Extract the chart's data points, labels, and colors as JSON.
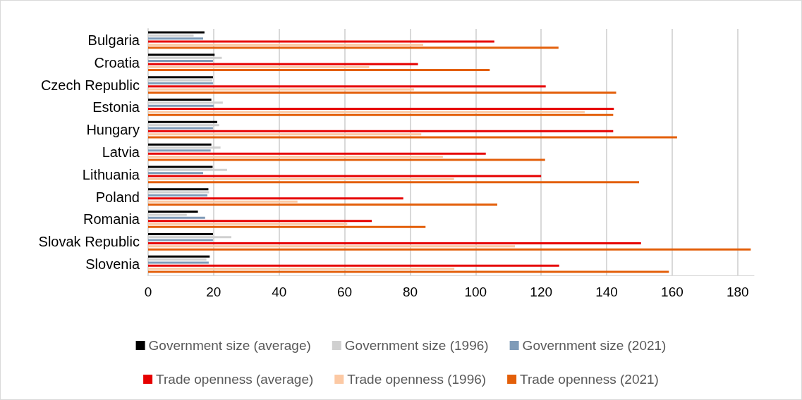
{
  "chart_data": {
    "type": "bar",
    "orientation": "horizontal",
    "categories": [
      "Bulgaria",
      "Croatia",
      "Czech Republic",
      "Estonia",
      "Hungary",
      "Latvia",
      "Lithuania",
      "Poland",
      "Romania",
      "Slovak Republic",
      "Slovenia"
    ],
    "series": [
      {
        "name": "Government size (average)",
        "color": "#000000",
        "values": [
          17.2,
          20.3,
          19.8,
          19.3,
          21.1,
          19.3,
          19.7,
          18.4,
          15.2,
          19.8,
          18.8
        ]
      },
      {
        "name": "Government size (1996)",
        "color": "#d0d0d0",
        "values": [
          13.9,
          22.5,
          19.6,
          22.8,
          21.7,
          22.1,
          24.1,
          18.6,
          11.8,
          25.4,
          17.8
        ]
      },
      {
        "name": "Government size (2021)",
        "color": "#7f9bb8",
        "values": [
          16.8,
          19.8,
          19.8,
          20.0,
          19.8,
          19.1,
          16.8,
          18.1,
          17.4,
          19.8,
          18.5
        ]
      },
      {
        "name": "Trade openness (average)",
        "color": "#e60000",
        "values": [
          105.7,
          82.4,
          121.4,
          142.2,
          142.0,
          103.1,
          120.0,
          77.9,
          68.3,
          150.5,
          125.5
        ]
      },
      {
        "name": "Trade openness (1996)",
        "color": "#fcc9a4",
        "values": [
          84,
          67.5,
          81.2,
          133.3,
          83.4,
          90.0,
          93.4,
          45.6,
          60.8,
          112,
          93.5
        ]
      },
      {
        "name": "Trade openness (2021)",
        "color": "#e35f0a",
        "values": [
          125.3,
          104.3,
          142.9,
          142.0,
          161.5,
          121.2,
          149.9,
          106.6,
          84.7,
          184,
          159
        ]
      }
    ],
    "xlim": [
      0,
      185
    ],
    "xticks": [
      0,
      20,
      40,
      60,
      80,
      100,
      120,
      140,
      160,
      180
    ],
    "grid": "x",
    "legend": "bottom"
  }
}
